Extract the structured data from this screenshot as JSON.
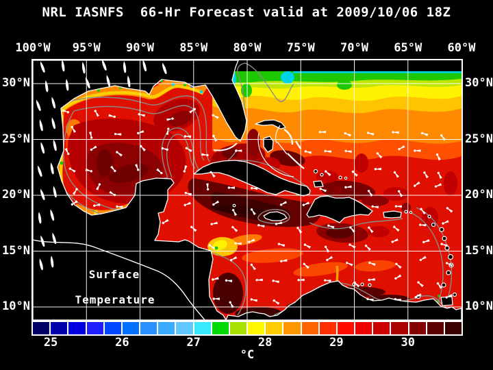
{
  "title": "NRL IASNFS  66-Hr Forecast valid at 2009/10/06 18Z",
  "map": {
    "overlay_label": {
      "line1": "Surface",
      "line2": "Temperature"
    },
    "lon_labels": [
      "100°W",
      "95°W",
      "90°W",
      "85°W",
      "80°W",
      "75°W",
      "70°W",
      "65°W",
      "60°W"
    ],
    "lat_labels": [
      "30°N",
      "25°N",
      "20°N",
      "15°N",
      "10°N"
    ]
  },
  "colorbar": {
    "unit": "°C",
    "tick_labels": [
      "25",
      "26",
      "27",
      "28",
      "29",
      "30"
    ],
    "cell_colors": [
      "#000066",
      "#0000a8",
      "#0000e0",
      "#2020ff",
      "#0048ff",
      "#0070ff",
      "#2890ff",
      "#38acff",
      "#60c8ff",
      "#38e8ff",
      "#00d800",
      "#a8e000",
      "#fff800",
      "#ffcc00",
      "#ff9800",
      "#ff6400",
      "#ff3000",
      "#ff0e00",
      "#ee0000",
      "#cc0000",
      "#aa0000",
      "#860000",
      "#5c0000",
      "#3a0000"
    ]
  },
  "colors": {
    "background": "#000000",
    "text": "#ffffff",
    "grid": "#ffffff",
    "coastline": "#ffffff",
    "contour": "#8a8a8a",
    "sea_base": "#e01000"
  }
}
